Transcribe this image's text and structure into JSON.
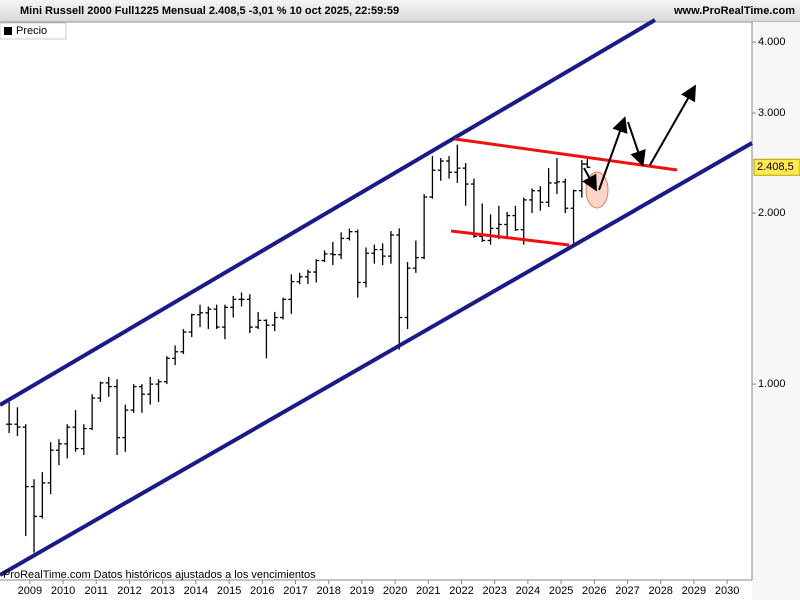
{
  "chart_data": {
    "type": "ohlc",
    "title": "Mini Russell 2000 Full1225 Mensual 2.408,5 -3,01 % 10 oct 2025, 22:59:59",
    "source": "www.ProRealTime.com",
    "footer": "ProRealTime.com  Datos históricos ajustados a los vencimientos",
    "log_scale": true,
    "xlim": [
      2008.1,
      2030.75
    ],
    "xticks": [
      2009,
      2010,
      2011,
      2012,
      2013,
      2014,
      2015,
      2016,
      2017,
      2018,
      2019,
      2020,
      2021,
      2022,
      2023,
      2024,
      2025,
      2026,
      2027,
      2028,
      2029,
      2030
    ],
    "ylim": [
      452,
      4340
    ],
    "yticks": [
      {
        "value": 1000,
        "label": "1.000"
      },
      {
        "value": 2000,
        "label": "2.000"
      },
      {
        "value": 3000,
        "label": "3.000"
      },
      {
        "value": 4000,
        "label": "4.000"
      }
    ],
    "last_price": {
      "value": 2408.5,
      "label": "2.408,5"
    },
    "series": [
      {
        "name": "Precio",
        "color": "#000000",
        "x": [
          2008.375,
          2008.625,
          2008.875,
          2009.125,
          2009.375,
          2009.625,
          2009.875,
          2010.125,
          2010.375,
          2010.625,
          2010.875,
          2011.125,
          2011.375,
          2011.625,
          2011.875,
          2012.125,
          2012.375,
          2012.625,
          2012.875,
          2013.125,
          2013.375,
          2013.625,
          2013.875,
          2014.125,
          2014.375,
          2014.625,
          2014.875,
          2015.125,
          2015.375,
          2015.625,
          2015.875,
          2016.125,
          2016.375,
          2016.625,
          2016.875,
          2017.125,
          2017.375,
          2017.625,
          2017.875,
          2018.125,
          2018.375,
          2018.625,
          2018.875,
          2019.125,
          2019.375,
          2019.625,
          2019.875,
          2020.125,
          2020.375,
          2020.625,
          2020.875,
          2021.125,
          2021.375,
          2021.625,
          2021.875,
          2022.125,
          2022.375,
          2022.625,
          2022.875,
          2023.125,
          2023.375,
          2023.625,
          2023.875,
          2024.125,
          2024.375,
          2024.625,
          2024.875,
          2025.125,
          2025.375,
          2025.625,
          2025.79
        ],
        "open": [
          850,
          850,
          840,
          660,
          585,
          670,
          765,
          785,
          840,
          770,
          835,
          945,
          1005,
          990,
          805,
          900,
          990,
          960,
          1000,
          1010,
          1110,
          1140,
          1235,
          1325,
          1335,
          1355,
          1260,
          1365,
          1410,
          1410,
          1260,
          1295,
          1270,
          1310,
          1410,
          1515,
          1545,
          1575,
          1650,
          1695,
          1690,
          1805,
          1855,
          1510,
          1700,
          1725,
          1680,
          1830,
          1310,
          1600,
          1670,
          2135,
          2380,
          2470,
          2360,
          2400,
          2250,
          1820,
          1790,
          1880,
          1910,
          1980,
          1870,
          2110,
          2190,
          2090,
          2260,
          2270,
          2040,
          2190,
          2440
        ],
        "high": [
          930,
          910,
          850,
          680,
          700,
          790,
          800,
          850,
          900,
          850,
          960,
          1010,
          1030,
          1020,
          920,
          1000,
          1000,
          1030,
          1020,
          1120,
          1170,
          1250,
          1330,
          1380,
          1370,
          1380,
          1380,
          1430,
          1450,
          1440,
          1340,
          1300,
          1340,
          1420,
          1560,
          1570,
          1590,
          1660,
          1720,
          1780,
          1850,
          1880,
          1870,
          1740,
          1760,
          1770,
          1860,
          1880,
          1640,
          1790,
          2160,
          2520,
          2500,
          2520,
          2640,
          2450,
          2300,
          2080,
          1990,
          2060,
          2010,
          2060,
          2130,
          2210,
          2230,
          2400,
          2500,
          2300,
          2200,
          2480,
          2490
        ],
        "low": [
          820,
          810,
          540,
          505,
          580,
          640,
          720,
          740,
          760,
          750,
          830,
          930,
          950,
          750,
          760,
          890,
          890,
          920,
          930,
          1000,
          1080,
          1130,
          1210,
          1260,
          1250,
          1250,
          1200,
          1310,
          1370,
          1230,
          1250,
          1110,
          1240,
          1300,
          1330,
          1500,
          1500,
          1510,
          1640,
          1620,
          1660,
          1790,
          1420,
          1480,
          1630,
          1620,
          1630,
          1150,
          1250,
          1570,
          1660,
          2120,
          2280,
          2300,
          2260,
          2060,
          1810,
          1780,
          1760,
          1800,
          1800,
          1860,
          1760,
          2000,
          2020,
          2050,
          2160,
          2000,
          1770,
          2130,
          2400
        ],
        "close": [
          850,
          840,
          660,
          585,
          670,
          765,
          785,
          840,
          770,
          835,
          945,
          1005,
          990,
          805,
          900,
          990,
          960,
          1000,
          1010,
          1110,
          1140,
          1235,
          1325,
          1335,
          1355,
          1260,
          1365,
          1410,
          1410,
          1260,
          1295,
          1270,
          1310,
          1410,
          1515,
          1545,
          1575,
          1650,
          1695,
          1690,
          1805,
          1855,
          1510,
          1700,
          1725,
          1680,
          1830,
          1310,
          1600,
          1670,
          2135,
          2380,
          2470,
          2360,
          2400,
          2250,
          1820,
          1790,
          1880,
          1910,
          1980,
          1870,
          2110,
          2190,
          2090,
          2260,
          2270,
          2040,
          2190,
          2440,
          2408.5
        ]
      }
    ]
  }
}
